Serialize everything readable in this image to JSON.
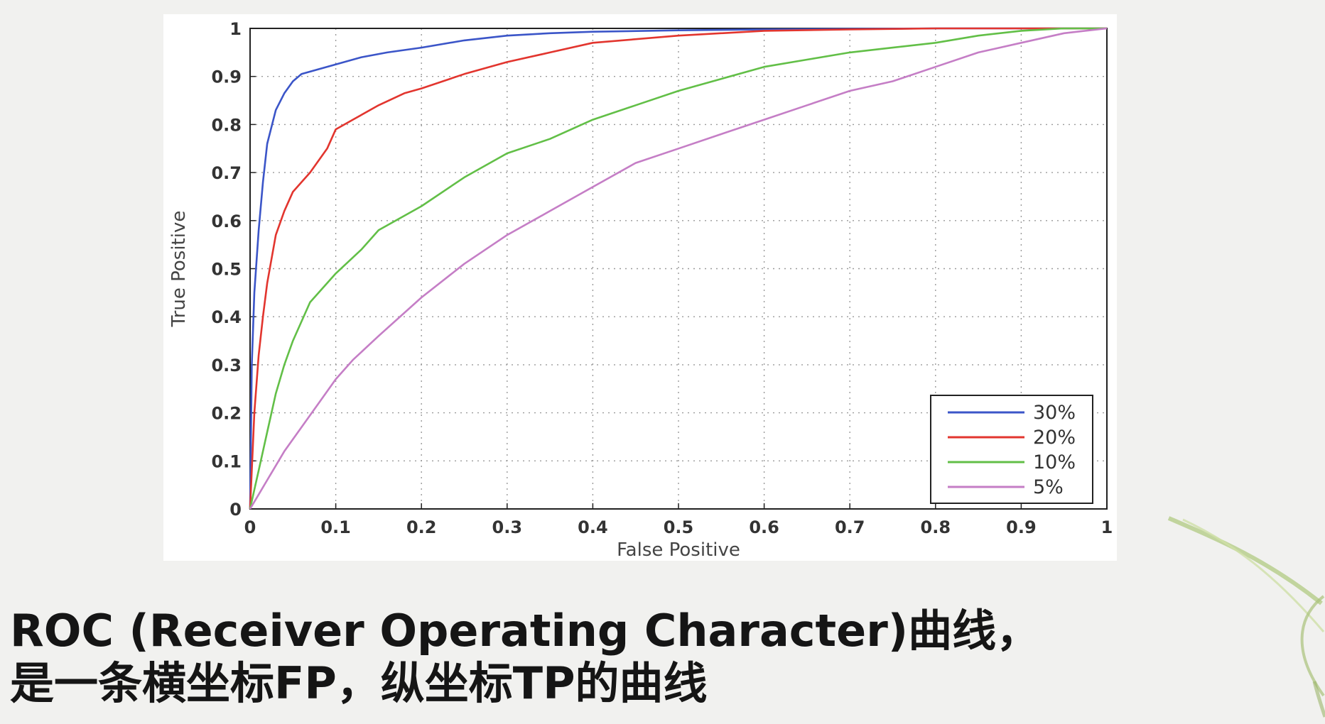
{
  "caption": {
    "line1": "ROC (Receiver Operating Character)曲线，",
    "line2": "是一条横坐标FP，纵坐标TP的曲线"
  },
  "chart_data": {
    "type": "line",
    "xlabel": "False Positive",
    "ylabel": "True Positive",
    "xlim": [
      0,
      1
    ],
    "ylim": [
      0,
      1
    ],
    "xticks": [
      0,
      0.1,
      0.2,
      0.3,
      0.4,
      0.5,
      0.6,
      0.7,
      0.8,
      0.9,
      1
    ],
    "xtick_labels": [
      "0",
      "0.1",
      "0.2",
      "0.3",
      "0.4",
      "0.5",
      "0.6",
      "0.7",
      "0.8",
      "0.9",
      "1"
    ],
    "yticks": [
      0,
      0.1,
      0.2,
      0.3,
      0.4,
      0.5,
      0.6,
      0.7,
      0.8,
      0.9,
      1
    ],
    "ytick_labels": [
      "0",
      "0.1",
      "0.2",
      "0.3",
      "0.4",
      "0.5",
      "0.6",
      "0.7",
      "0.8",
      "0.9",
      "1"
    ],
    "grid": true,
    "legend_position": "bottom-right",
    "series": [
      {
        "name": "30%",
        "color": "#3b55c8",
        "x": [
          0,
          0.002,
          0.005,
          0.01,
          0.015,
          0.02,
          0.03,
          0.04,
          0.05,
          0.06,
          0.08,
          0.1,
          0.13,
          0.16,
          0.2,
          0.25,
          0.3,
          0.35,
          0.4,
          0.5,
          0.6,
          0.7,
          0.8,
          0.9,
          1.0
        ],
        "y": [
          0,
          0.3,
          0.45,
          0.58,
          0.68,
          0.76,
          0.83,
          0.865,
          0.89,
          0.905,
          0.915,
          0.925,
          0.94,
          0.95,
          0.96,
          0.975,
          0.985,
          0.99,
          0.993,
          0.996,
          0.998,
          0.999,
          1.0,
          1.0,
          1.0
        ]
      },
      {
        "name": "20%",
        "color": "#e2352e",
        "x": [
          0,
          0.005,
          0.01,
          0.015,
          0.02,
          0.03,
          0.04,
          0.05,
          0.07,
          0.09,
          0.1,
          0.12,
          0.15,
          0.18,
          0.2,
          0.25,
          0.3,
          0.35,
          0.4,
          0.5,
          0.6,
          0.7,
          0.8,
          0.9,
          1.0
        ],
        "y": [
          0,
          0.2,
          0.32,
          0.4,
          0.47,
          0.57,
          0.62,
          0.66,
          0.7,
          0.75,
          0.79,
          0.81,
          0.84,
          0.865,
          0.875,
          0.905,
          0.93,
          0.95,
          0.97,
          0.985,
          0.995,
          0.998,
          1.0,
          1.0,
          1.0
        ]
      },
      {
        "name": "10%",
        "color": "#62bf47",
        "x": [
          0,
          0.005,
          0.01,
          0.02,
          0.03,
          0.04,
          0.05,
          0.07,
          0.1,
          0.13,
          0.15,
          0.17,
          0.2,
          0.25,
          0.3,
          0.35,
          0.4,
          0.45,
          0.5,
          0.55,
          0.6,
          0.65,
          0.7,
          0.75,
          0.8,
          0.85,
          0.9,
          0.95,
          1.0
        ],
        "y": [
          0,
          0.04,
          0.08,
          0.16,
          0.24,
          0.3,
          0.35,
          0.43,
          0.49,
          0.54,
          0.58,
          0.6,
          0.63,
          0.69,
          0.74,
          0.77,
          0.81,
          0.84,
          0.87,
          0.895,
          0.92,
          0.935,
          0.95,
          0.96,
          0.97,
          0.985,
          0.995,
          1.0,
          1.0
        ]
      },
      {
        "name": "5%",
        "color": "#c57ec6",
        "x": [
          0,
          0.01,
          0.02,
          0.04,
          0.06,
          0.08,
          0.1,
          0.12,
          0.15,
          0.2,
          0.25,
          0.3,
          0.35,
          0.4,
          0.45,
          0.5,
          0.55,
          0.6,
          0.65,
          0.7,
          0.75,
          0.8,
          0.85,
          0.9,
          0.95,
          1.0
        ],
        "y": [
          0,
          0.03,
          0.06,
          0.12,
          0.17,
          0.22,
          0.27,
          0.31,
          0.36,
          0.44,
          0.51,
          0.57,
          0.62,
          0.67,
          0.72,
          0.75,
          0.78,
          0.81,
          0.84,
          0.87,
          0.89,
          0.92,
          0.95,
          0.97,
          0.99,
          1.0
        ]
      }
    ]
  }
}
